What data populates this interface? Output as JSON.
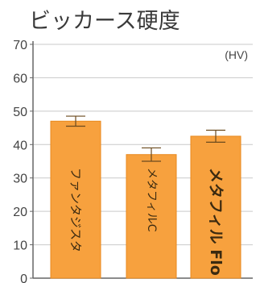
{
  "chart_data": {
    "type": "bar",
    "title": "ビッカース硬度",
    "unit": "(HV)",
    "categories": [
      "ファンタジスタ",
      "メタフィルC",
      "メタフィル Flo"
    ],
    "values": [
      47,
      37,
      42.5
    ],
    "errors": [
      1.5,
      2,
      1.8
    ],
    "ylim": [
      0,
      70
    ],
    "yticks": [
      0,
      10,
      20,
      30,
      40,
      50,
      60,
      70
    ],
    "gridlines": true,
    "legend": "none",
    "colors": {
      "bar_fill": "#f7a13e",
      "bar_edge": "#e8891e",
      "grid": "#c9c9c9",
      "axis": "#666666",
      "error_bar": "#6b4a1e"
    }
  }
}
